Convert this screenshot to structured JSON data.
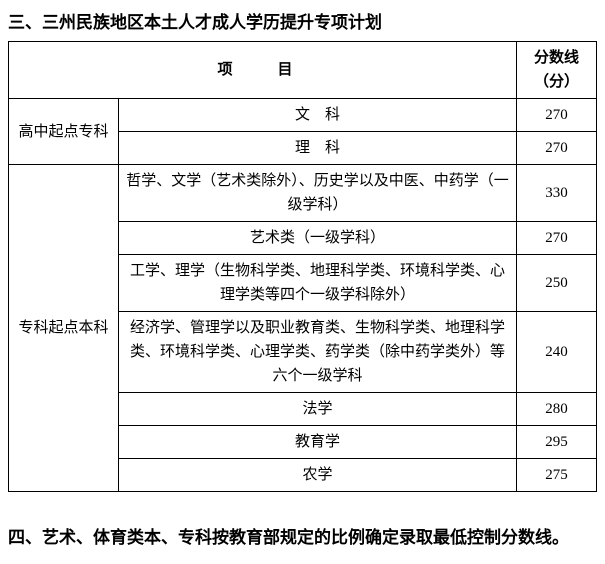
{
  "heading3": "三、三州民族地区本土人才成人学历提升专项计划",
  "table": {
    "header_project": "项　目",
    "header_score": "分数线（分）",
    "category1": "高中起点专科",
    "category2": "专科起点本科",
    "rows": [
      {
        "subject": "文　科",
        "score": "270"
      },
      {
        "subject": "理　科",
        "score": "270"
      },
      {
        "subject": "哲学、文学（艺术类除外）、历史学以及中医、中药学（一级学科）",
        "score": "330"
      },
      {
        "subject": "艺术类（一级学科）",
        "score": "270"
      },
      {
        "subject": "工学、理学（生物科学类、地理科学类、环境科学类、心理学类等四个一级学科除外）",
        "score": "250"
      },
      {
        "subject": "经济学、管理学以及职业教育类、生物科学类、地理科学类、环境科学类、心理学类、药学类（除中药学类外）等六个一级学科",
        "score": "240"
      },
      {
        "subject": "法学",
        "score": "280"
      },
      {
        "subject": "教育学",
        "score": "295"
      },
      {
        "subject": "农学",
        "score": "275"
      }
    ]
  },
  "heading4": "四、艺术、体育类本、专科按教育部规定的比例确定录取最低控制分数线。"
}
